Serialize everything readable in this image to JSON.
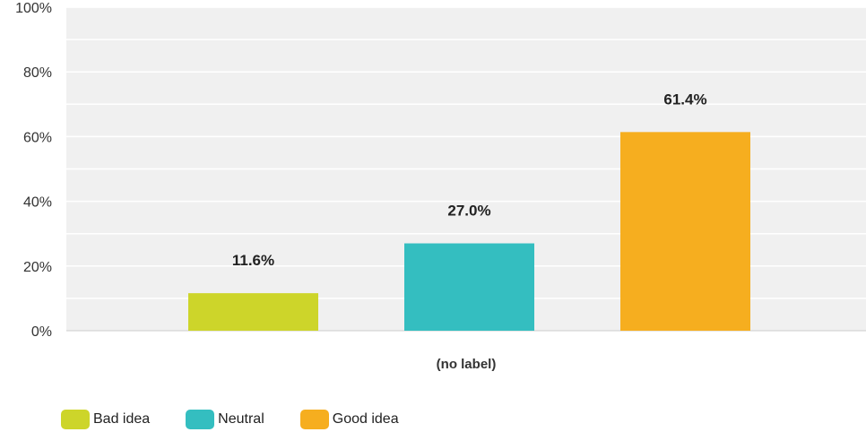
{
  "chart_data": {
    "type": "bar",
    "categories": [
      "(no label)"
    ],
    "series": [
      {
        "name": "Bad idea",
        "values": [
          11.6
        ],
        "color": "#cdd52a",
        "label": "11.6%"
      },
      {
        "name": "Neutral",
        "values": [
          27.0
        ],
        "color": "#34bec0",
        "label": "27.0%"
      },
      {
        "name": "Good idea",
        "values": [
          61.4
        ],
        "color": "#f6ae1f",
        "label": "61.4%"
      }
    ],
    "yticks": [
      "0%",
      "20%",
      "40%",
      "60%",
      "80%",
      "100%"
    ],
    "ylim": [
      0,
      100
    ],
    "grid": true,
    "legend": "bottom-left"
  }
}
